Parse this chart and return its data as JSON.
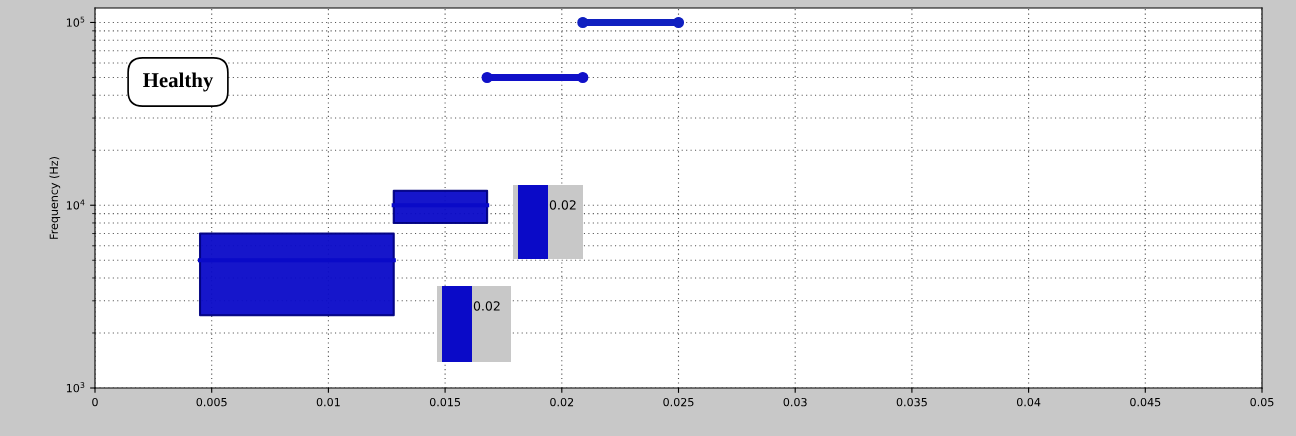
{
  "chart_data": {
    "type": "line",
    "ylabel": "Frequency (Hz)",
    "log": "y",
    "grid": true,
    "marker": "circle",
    "line_style": "solid",
    "xlim": [
      0,
      0.05
    ],
    "xticks": [
      0,
      0.005,
      0.01,
      0.015,
      0.02,
      0.025,
      0.03,
      0.035,
      0.04,
      0.045,
      0.05
    ],
    "ylim": [
      1000,
      120000
    ],
    "yticks": [
      {
        "value": 1000,
        "label": "10$^{3}$"
      },
      {
        "value": 10000,
        "label": "10$^{4}$"
      },
      {
        "value": 100000,
        "label": "10$^{5}$"
      }
    ],
    "series": [
      {
        "color": "#0a0ac8",
        "marker": "none",
        "x": [
          0.0045,
          0.0128
        ],
        "values": [
          5000,
          5000
        ],
        "lower": [
          2500,
          2500
        ],
        "upper": [
          7000,
          7000
        ]
      },
      {
        "color": "#0a0ac8",
        "marker": "none",
        "x": [
          0.0128,
          0.0168
        ],
        "values": [
          10000,
          10000
        ],
        "lower": [
          8000,
          8000
        ],
        "upper": [
          12000,
          12000
        ]
      },
      {
        "color": "#1010c8",
        "x": [
          0.0168,
          0.0209
        ],
        "values": [
          50000,
          50000
        ]
      },
      {
        "color": "#1020c0",
        "x": [
          0.0209,
          0.025
        ],
        "values": [
          100000,
          100000
        ]
      }
    ],
    "annotations": [
      "Healthy",
      "0.02",
      "0.02"
    ]
  }
}
